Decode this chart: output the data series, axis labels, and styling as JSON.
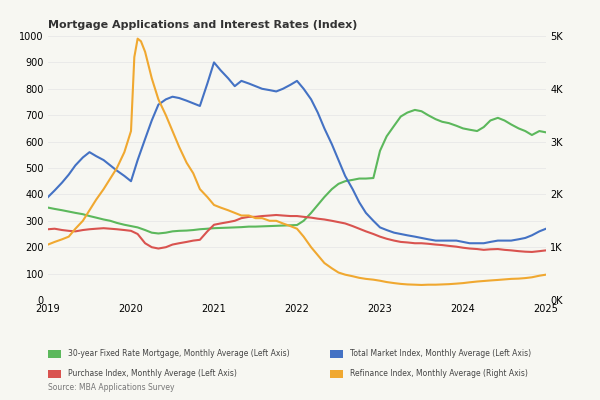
{
  "title": "Mortgage Applications and Interest Rates (Index)",
  "source": "Source: MBA Applications Survey",
  "ylim_left": [
    0,
    1000
  ],
  "ylim_right": [
    0,
    5000
  ],
  "yticks_left": [
    0,
    100,
    200,
    300,
    400,
    500,
    600,
    700,
    800,
    900,
    1000
  ],
  "ytick_labels_right": [
    "0K",
    "1K",
    "2K",
    "3K",
    "4K",
    "5K"
  ],
  "xlim": [
    2019.0,
    2025.0
  ],
  "xticks": [
    2019,
    2020,
    2021,
    2022,
    2023,
    2024,
    2025
  ],
  "colors": {
    "green": "#5cb85c",
    "blue": "#4472c4",
    "red": "#d9534f",
    "orange": "#f0a830"
  },
  "legend": [
    {
      "label": "30-year Fixed Rate Mortgage, Monthly Average (Left Axis)",
      "color": "#5cb85c"
    },
    {
      "label": "Total Market Index, Monthly Average (Left Axis)",
      "color": "#4472c4"
    },
    {
      "label": "Purchase Index, Monthly Average (Left Axis)",
      "color": "#d9534f"
    },
    {
      "label": "Refinance Index, Monthly Average (Right Axis)",
      "color": "#f0a830"
    }
  ],
  "green_x": [
    2019.0,
    2019.08,
    2019.17,
    2019.25,
    2019.33,
    2019.42,
    2019.5,
    2019.58,
    2019.67,
    2019.75,
    2019.83,
    2019.92,
    2020.0,
    2020.08,
    2020.17,
    2020.25,
    2020.33,
    2020.42,
    2020.5,
    2020.58,
    2020.67,
    2020.75,
    2020.83,
    2020.92,
    2021.0,
    2021.08,
    2021.17,
    2021.25,
    2021.33,
    2021.42,
    2021.5,
    2021.58,
    2021.67,
    2021.75,
    2021.83,
    2021.92,
    2022.0,
    2022.08,
    2022.17,
    2022.25,
    2022.33,
    2022.42,
    2022.5,
    2022.58,
    2022.67,
    2022.75,
    2022.83,
    2022.92,
    2023.0,
    2023.08,
    2023.17,
    2023.25,
    2023.33,
    2023.42,
    2023.5,
    2023.58,
    2023.67,
    2023.75,
    2023.83,
    2023.92,
    2024.0,
    2024.08,
    2024.17,
    2024.25,
    2024.33,
    2024.42,
    2024.5,
    2024.58,
    2024.67,
    2024.75,
    2024.83,
    2024.92,
    2025.0
  ],
  "green_y": [
    350,
    345,
    340,
    335,
    330,
    325,
    318,
    312,
    305,
    300,
    292,
    285,
    280,
    275,
    265,
    255,
    252,
    255,
    260,
    262,
    263,
    265,
    268,
    270,
    272,
    273,
    274,
    275,
    276,
    278,
    278,
    279,
    280,
    281,
    282,
    283,
    284,
    300,
    330,
    360,
    390,
    420,
    440,
    450,
    455,
    460,
    460,
    462,
    565,
    620,
    660,
    695,
    710,
    720,
    715,
    700,
    685,
    675,
    670,
    660,
    650,
    645,
    640,
    655,
    680,
    690,
    680,
    665,
    650,
    640,
    625,
    640,
    635
  ],
  "blue_x": [
    2019.0,
    2019.08,
    2019.17,
    2019.25,
    2019.33,
    2019.42,
    2019.5,
    2019.58,
    2019.67,
    2019.75,
    2019.83,
    2019.92,
    2020.0,
    2020.08,
    2020.17,
    2020.25,
    2020.33,
    2020.42,
    2020.5,
    2020.58,
    2020.67,
    2020.75,
    2020.83,
    2020.92,
    2021.0,
    2021.08,
    2021.17,
    2021.25,
    2021.33,
    2021.42,
    2021.5,
    2021.58,
    2021.67,
    2021.75,
    2021.83,
    2021.92,
    2022.0,
    2022.08,
    2022.17,
    2022.25,
    2022.33,
    2022.42,
    2022.5,
    2022.58,
    2022.67,
    2022.75,
    2022.83,
    2022.92,
    2023.0,
    2023.08,
    2023.17,
    2023.25,
    2023.33,
    2023.42,
    2023.5,
    2023.58,
    2023.67,
    2023.75,
    2023.83,
    2023.92,
    2024.0,
    2024.08,
    2024.17,
    2024.25,
    2024.33,
    2024.42,
    2024.5,
    2024.58,
    2024.67,
    2024.75,
    2024.83,
    2024.92,
    2025.0
  ],
  "blue_y": [
    390,
    415,
    445,
    475,
    510,
    540,
    560,
    545,
    530,
    510,
    490,
    470,
    450,
    530,
    610,
    680,
    740,
    760,
    770,
    765,
    755,
    745,
    735,
    820,
    900,
    870,
    840,
    810,
    830,
    820,
    810,
    800,
    795,
    790,
    800,
    815,
    830,
    800,
    760,
    710,
    650,
    590,
    530,
    470,
    420,
    370,
    330,
    300,
    275,
    265,
    255,
    250,
    245,
    240,
    235,
    230,
    225,
    225,
    225,
    225,
    220,
    215,
    215,
    215,
    220,
    225,
    225,
    225,
    230,
    235,
    245,
    260,
    270
  ],
  "red_x": [
    2019.0,
    2019.08,
    2019.17,
    2019.25,
    2019.33,
    2019.42,
    2019.5,
    2019.58,
    2019.67,
    2019.75,
    2019.83,
    2019.92,
    2020.0,
    2020.08,
    2020.17,
    2020.25,
    2020.33,
    2020.42,
    2020.5,
    2020.58,
    2020.67,
    2020.75,
    2020.83,
    2020.92,
    2021.0,
    2021.08,
    2021.17,
    2021.25,
    2021.33,
    2021.42,
    2021.5,
    2021.58,
    2021.67,
    2021.75,
    2021.83,
    2021.92,
    2022.0,
    2022.08,
    2022.17,
    2022.25,
    2022.33,
    2022.42,
    2022.5,
    2022.58,
    2022.67,
    2022.75,
    2022.83,
    2022.92,
    2023.0,
    2023.08,
    2023.17,
    2023.25,
    2023.33,
    2023.42,
    2023.5,
    2023.58,
    2023.67,
    2023.75,
    2023.83,
    2023.92,
    2024.0,
    2024.08,
    2024.17,
    2024.25,
    2024.33,
    2024.42,
    2024.5,
    2024.58,
    2024.67,
    2024.75,
    2024.83,
    2024.92,
    2025.0
  ],
  "red_y": [
    268,
    270,
    265,
    262,
    260,
    265,
    268,
    270,
    272,
    270,
    268,
    265,
    262,
    250,
    215,
    200,
    195,
    200,
    210,
    215,
    220,
    225,
    228,
    260,
    285,
    290,
    295,
    300,
    310,
    315,
    315,
    318,
    320,
    322,
    320,
    318,
    318,
    315,
    312,
    308,
    305,
    300,
    295,
    290,
    280,
    270,
    260,
    250,
    240,
    232,
    225,
    220,
    218,
    215,
    215,
    213,
    210,
    208,
    205,
    202,
    198,
    195,
    193,
    190,
    192,
    193,
    190,
    188,
    185,
    183,
    182,
    185,
    188
  ],
  "orange_x": [
    2019.0,
    2019.08,
    2019.17,
    2019.25,
    2019.33,
    2019.42,
    2019.5,
    2019.58,
    2019.67,
    2019.75,
    2019.83,
    2019.92,
    2020.0,
    2020.04,
    2020.08,
    2020.12,
    2020.17,
    2020.25,
    2020.33,
    2020.42,
    2020.5,
    2020.58,
    2020.67,
    2020.75,
    2020.83,
    2020.92,
    2021.0,
    2021.08,
    2021.17,
    2021.25,
    2021.33,
    2021.42,
    2021.5,
    2021.58,
    2021.67,
    2021.75,
    2021.83,
    2021.92,
    2022.0,
    2022.08,
    2022.17,
    2022.25,
    2022.33,
    2022.42,
    2022.5,
    2022.58,
    2022.67,
    2022.75,
    2022.83,
    2022.92,
    2023.0,
    2023.08,
    2023.17,
    2023.25,
    2023.33,
    2023.42,
    2023.5,
    2023.58,
    2023.67,
    2023.75,
    2023.83,
    2023.92,
    2024.0,
    2024.08,
    2024.17,
    2024.25,
    2024.33,
    2024.42,
    2024.5,
    2024.58,
    2024.67,
    2024.75,
    2024.83,
    2024.92,
    2025.0
  ],
  "orange_y": [
    1050,
    1100,
    1150,
    1200,
    1350,
    1500,
    1700,
    1900,
    2100,
    2300,
    2500,
    2800,
    3200,
    4600,
    4950,
    4900,
    4700,
    4200,
    3800,
    3500,
    3200,
    2900,
    2600,
    2400,
    2100,
    1950,
    1800,
    1750,
    1700,
    1650,
    1600,
    1600,
    1550,
    1550,
    1500,
    1500,
    1450,
    1400,
    1350,
    1200,
    1000,
    850,
    700,
    600,
    520,
    480,
    450,
    420,
    400,
    385,
    365,
    340,
    320,
    305,
    295,
    290,
    285,
    290,
    290,
    295,
    300,
    310,
    320,
    335,
    350,
    360,
    370,
    380,
    390,
    400,
    405,
    415,
    430,
    460,
    480
  ],
  "background_color": "#f7f7f2",
  "grid_color": "#e8e8e8"
}
